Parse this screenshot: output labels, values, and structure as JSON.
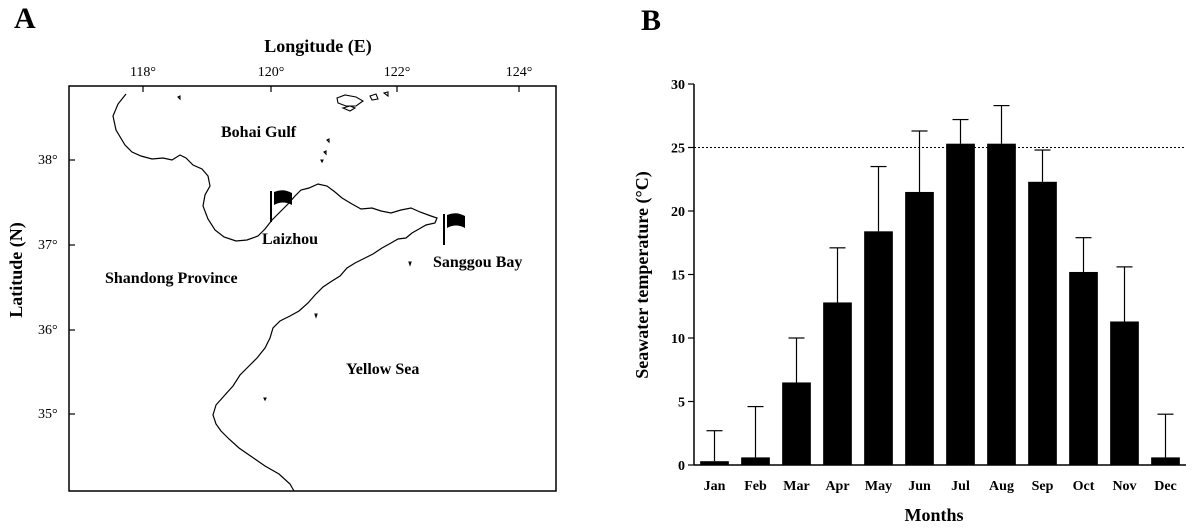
{
  "panel_a": {
    "letter": "A",
    "x_axis_title": "Longitude (E)",
    "y_axis_title": "Latitude (N)",
    "longitude_ticks": [
      "118°",
      "120°",
      "122°",
      "124°"
    ],
    "latitude_ticks": [
      "38°",
      "37°",
      "36°",
      "35°"
    ],
    "places": {
      "bohai": "Bohai Gulf",
      "laizhou": "Laizhou",
      "sanggou": "Sanggou Bay",
      "shandong": "Shandong Province",
      "yellow_sea": "Yellow Sea"
    }
  },
  "panel_b": {
    "letter": "B",
    "y_axis_title": "Seawater temperature (°C)",
    "x_axis_title": "Months",
    "y_ticks": [
      "0",
      "5",
      "10",
      "15",
      "20",
      "25",
      "30"
    ]
  },
  "chart_data": {
    "type": "bar",
    "categories": [
      "Jan",
      "Feb",
      "Mar",
      "Apr",
      "May",
      "Jun",
      "Jul",
      "Aug",
      "Sep",
      "Oct",
      "Nov",
      "Dec"
    ],
    "values": [
      0.3,
      0.6,
      6.5,
      12.8,
      18.4,
      21.5,
      25.3,
      25.3,
      22.3,
      15.2,
      11.3,
      0.6
    ],
    "error_plus": [
      2.4,
      4.0,
      3.5,
      4.3,
      5.1,
      4.8,
      1.9,
      3.0,
      2.5,
      2.7,
      4.3,
      3.4
    ],
    "xlabel": "Months",
    "ylabel": "Seawater temperature (°C)",
    "ylim": [
      0,
      30
    ],
    "reference_line": 25,
    "bar_color": "#000000"
  }
}
